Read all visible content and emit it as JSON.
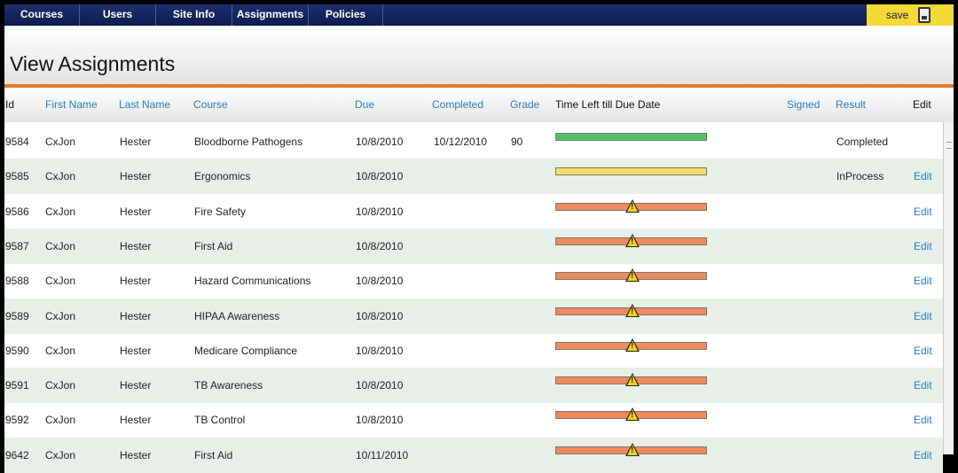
{
  "nav": {
    "items": [
      "Courses",
      "Users",
      "Site Info",
      "Assignments",
      "Policies"
    ],
    "save_label": "save"
  },
  "page": {
    "title": "View Assignments"
  },
  "table": {
    "headers": {
      "id": "Id",
      "first_name": "First Name",
      "last_name": "Last Name",
      "course": "Course",
      "due": "Due",
      "completed": "Completed",
      "grade": "Grade",
      "time_left": "Time Left till Due Date",
      "signed": "Signed",
      "result": "Result",
      "edit": "Edit"
    },
    "rows": [
      {
        "id": "9584",
        "first": "CxJon",
        "last": "Hester",
        "course": "Bloodborne Pathogens",
        "due": "10/8/2010",
        "completed": "10/12/2010",
        "grade": "90",
        "status": "green",
        "result": "Completed",
        "edit": ""
      },
      {
        "id": "9585",
        "first": "CxJon",
        "last": "Hester",
        "course": "Ergonomics",
        "due": "10/8/2010",
        "completed": "",
        "grade": "",
        "status": "yellow",
        "result": "InProcess",
        "edit": "Edit"
      },
      {
        "id": "9586",
        "first": "CxJon",
        "last": "Hester",
        "course": "Fire Safety",
        "due": "10/8/2010",
        "completed": "",
        "grade": "",
        "status": "orange-warning",
        "result": "",
        "edit": "Edit"
      },
      {
        "id": "9587",
        "first": "CxJon",
        "last": "Hester",
        "course": "First Aid",
        "due": "10/8/2010",
        "completed": "",
        "grade": "",
        "status": "orange-warning",
        "result": "",
        "edit": "Edit"
      },
      {
        "id": "9588",
        "first": "CxJon",
        "last": "Hester",
        "course": "Hazard Communications",
        "due": "10/8/2010",
        "completed": "",
        "grade": "",
        "status": "orange-warning",
        "result": "",
        "edit": "Edit"
      },
      {
        "id": "9589",
        "first": "CxJon",
        "last": "Hester",
        "course": "HIPAA Awareness",
        "due": "10/8/2010",
        "completed": "",
        "grade": "",
        "status": "orange-warning",
        "result": "",
        "edit": "Edit"
      },
      {
        "id": "9590",
        "first": "CxJon",
        "last": "Hester",
        "course": "Medicare Compliance",
        "due": "10/8/2010",
        "completed": "",
        "grade": "",
        "status": "orange-warning",
        "result": "",
        "edit": "Edit"
      },
      {
        "id": "9591",
        "first": "CxJon",
        "last": "Hester",
        "course": "TB Awareness",
        "due": "10/8/2010",
        "completed": "",
        "grade": "",
        "status": "orange-warning",
        "result": "",
        "edit": "Edit"
      },
      {
        "id": "9592",
        "first": "CxJon",
        "last": "Hester",
        "course": "TB Control",
        "due": "10/8/2010",
        "completed": "",
        "grade": "",
        "status": "orange-warning",
        "result": "",
        "edit": "Edit"
      },
      {
        "id": "9642",
        "first": "CxJon",
        "last": "Hester",
        "course": "First Aid",
        "due": "10/11/2010",
        "completed": "",
        "grade": "",
        "status": "orange-warning",
        "result": "",
        "edit": "Edit"
      }
    ]
  },
  "colors": {
    "nav_bg": "#1d2e6e",
    "save_bg": "#f3da39",
    "accent_orange": "#e57a26",
    "link_blue": "#2a7bc4",
    "bar_green": "#4cc266",
    "bar_yellow": "#f4e065",
    "bar_orange": "#ee8a5c"
  }
}
